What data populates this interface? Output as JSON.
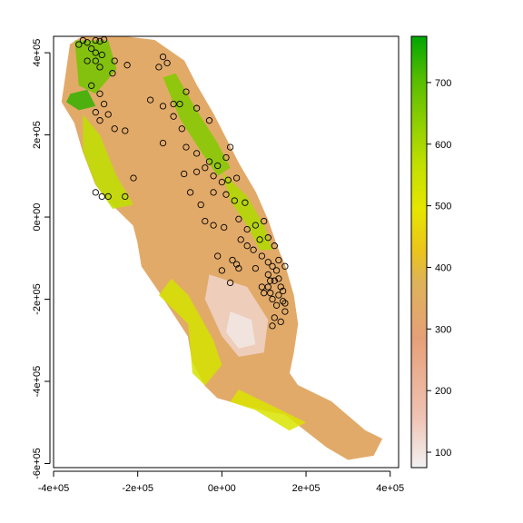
{
  "chart_data": {
    "type": "raster_map",
    "title": "",
    "xlabel": "",
    "ylabel": "",
    "xlim": [
      -400000,
      420000
    ],
    "ylim": [
      -610000,
      440000
    ],
    "x_ticks": [
      {
        "value": -400000,
        "label": "-4e+05"
      },
      {
        "value": -200000,
        "label": "-2e+05"
      },
      {
        "value": 0,
        "label": "0e+00"
      },
      {
        "value": 200000,
        "label": "2e+05"
      },
      {
        "value": 400000,
        "label": "4e+05"
      }
    ],
    "y_ticks": [
      {
        "value": -600000,
        "label": "-6e+05"
      },
      {
        "value": -400000,
        "label": "-4e+05"
      },
      {
        "value": -200000,
        "label": "-2e+05"
      },
      {
        "value": 0,
        "label": "0e+00"
      },
      {
        "value": 200000,
        "label": "2e+05"
      },
      {
        "value": 400000,
        "label": "4e+05"
      }
    ],
    "legend": {
      "placement": "right",
      "min": 75,
      "max": 775,
      "ticks": [
        100,
        200,
        300,
        400,
        500,
        600,
        700
      ],
      "colors": [
        "#f2f2f2",
        "#efc2b3",
        "#e6a078",
        "#ddb35a",
        "#ebc31c",
        "#e6e600",
        "#c2e000",
        "#8ecf00",
        "#57bd00",
        "#1fab00",
        "#00a600"
      ]
    },
    "region_outline": [
      [
        -360000,
        420000
      ],
      [
        -330000,
        440000
      ],
      [
        -240000,
        440000
      ],
      [
        -160000,
        430000
      ],
      [
        -90000,
        380000
      ],
      [
        -60000,
        320000
      ],
      [
        -20000,
        250000
      ],
      [
        10000,
        190000
      ],
      [
        40000,
        130000
      ],
      [
        80000,
        60000
      ],
      [
        110000,
        -10000
      ],
      [
        130000,
        -70000
      ],
      [
        150000,
        -120000
      ],
      [
        170000,
        -190000
      ],
      [
        180000,
        -260000
      ],
      [
        170000,
        -330000
      ],
      [
        160000,
        -380000
      ],
      [
        180000,
        -410000
      ],
      [
        260000,
        -450000
      ],
      [
        340000,
        -520000
      ],
      [
        380000,
        -540000
      ],
      [
        360000,
        -580000
      ],
      [
        300000,
        -590000
      ],
      [
        250000,
        -560000
      ],
      [
        200000,
        -520000
      ],
      [
        150000,
        -480000
      ],
      [
        100000,
        -470000
      ],
      [
        60000,
        -460000
      ],
      [
        -10000,
        -440000
      ],
      [
        -40000,
        -410000
      ],
      [
        -70000,
        -350000
      ],
      [
        -80000,
        -290000
      ],
      [
        -150000,
        -180000
      ],
      [
        -190000,
        -120000
      ],
      [
        -200000,
        -60000
      ],
      [
        -210000,
        -20000
      ],
      [
        -270000,
        40000
      ],
      [
        -300000,
        80000
      ],
      [
        -330000,
        160000
      ],
      [
        -350000,
        230000
      ],
      [
        -380000,
        280000
      ],
      [
        -370000,
        350000
      ],
      [
        -360000,
        420000
      ]
    ],
    "elevation_zones": [
      {
        "value": 680,
        "polygon": [
          [
            -360000,
            300000
          ],
          [
            -320000,
            310000
          ],
          [
            -300000,
            270000
          ],
          [
            -340000,
            260000
          ],
          [
            -370000,
            280000
          ]
        ]
      },
      {
        "value": 600,
        "polygon": [
          [
            -350000,
            430000
          ],
          [
            -270000,
            430000
          ],
          [
            -250000,
            360000
          ],
          [
            -300000,
            300000
          ],
          [
            -340000,
            320000
          ]
        ]
      },
      {
        "value": 580,
        "polygon": [
          [
            -140000,
            340000
          ],
          [
            -110000,
            350000
          ],
          [
            -60000,
            260000
          ],
          [
            -10000,
            180000
          ],
          [
            20000,
            120000
          ],
          [
            -10000,
            100000
          ],
          [
            -50000,
            160000
          ],
          [
            -100000,
            240000
          ]
        ]
      },
      {
        "value": 500,
        "polygon": [
          [
            -330000,
            250000
          ],
          [
            -290000,
            200000
          ],
          [
            -250000,
            100000
          ],
          [
            -210000,
            30000
          ],
          [
            -260000,
            20000
          ],
          [
            -300000,
            80000
          ],
          [
            -330000,
            160000
          ]
        ]
      },
      {
        "value": 520,
        "polygon": [
          [
            0,
            110000
          ],
          [
            60000,
            50000
          ],
          [
            100000,
            -20000
          ],
          [
            120000,
            -80000
          ],
          [
            90000,
            -80000
          ],
          [
            60000,
            -20000
          ],
          [
            20000,
            40000
          ]
        ]
      },
      {
        "value": 460,
        "polygon": [
          [
            -150000,
            -190000
          ],
          [
            -80000,
            -260000
          ],
          [
            -70000,
            -380000
          ],
          [
            -40000,
            -410000
          ],
          [
            0,
            -360000
          ],
          [
            -20000,
            -300000
          ],
          [
            -80000,
            -190000
          ],
          [
            -120000,
            -150000
          ]
        ]
      },
      {
        "value": 450,
        "polygon": [
          [
            40000,
            -420000
          ],
          [
            120000,
            -460000
          ],
          [
            200000,
            -500000
          ],
          [
            160000,
            -520000
          ],
          [
            80000,
            -470000
          ],
          [
            20000,
            -450000
          ]
        ]
      },
      {
        "value": 120,
        "polygon": [
          [
            -30000,
            -140000
          ],
          [
            60000,
            -170000
          ],
          [
            110000,
            -250000
          ],
          [
            100000,
            -330000
          ],
          [
            40000,
            -340000
          ],
          [
            0,
            -290000
          ],
          [
            -40000,
            -200000
          ]
        ]
      },
      {
        "value": 90,
        "polygon": [
          [
            20000,
            -230000
          ],
          [
            70000,
            -250000
          ],
          [
            80000,
            -310000
          ],
          [
            40000,
            -320000
          ],
          [
            10000,
            -280000
          ]
        ]
      }
    ],
    "points": [
      [
        -330000,
        430000
      ],
      [
        -320000,
        425000
      ],
      [
        -300000,
        430000
      ],
      [
        -290000,
        428000
      ],
      [
        -280000,
        432000
      ],
      [
        -340000,
        420000
      ],
      [
        -310000,
        410000
      ],
      [
        -300000,
        400000
      ],
      [
        -285000,
        395000
      ],
      [
        -320000,
        380000
      ],
      [
        -300000,
        380000
      ],
      [
        -290000,
        365000
      ],
      [
        -255000,
        380000
      ],
      [
        -225000,
        370000
      ],
      [
        -140000,
        390000
      ],
      [
        -130000,
        375000
      ],
      [
        -150000,
        365000
      ],
      [
        -310000,
        320000
      ],
      [
        -290000,
        300000
      ],
      [
        -260000,
        350000
      ],
      [
        -280000,
        275000
      ],
      [
        -300000,
        255000
      ],
      [
        -270000,
        250000
      ],
      [
        -290000,
        235000
      ],
      [
        -255000,
        215000
      ],
      [
        -230000,
        210000
      ],
      [
        -170000,
        285000
      ],
      [
        -140000,
        270000
      ],
      [
        -115000,
        275000
      ],
      [
        -100000,
        275000
      ],
      [
        -85000,
        305000
      ],
      [
        -60000,
        265000
      ],
      [
        -30000,
        235000
      ],
      [
        -115000,
        245000
      ],
      [
        -95000,
        215000
      ],
      [
        -85000,
        170000
      ],
      [
        -140000,
        180000
      ],
      [
        -60000,
        155000
      ],
      [
        -40000,
        120000
      ],
      [
        -30000,
        135000
      ],
      [
        -10000,
        125000
      ],
      [
        10000,
        145000
      ],
      [
        20000,
        170000
      ],
      [
        -20000,
        100000
      ],
      [
        0,
        85000
      ],
      [
        15000,
        90000
      ],
      [
        35000,
        95000
      ],
      [
        -60000,
        110000
      ],
      [
        -90000,
        105000
      ],
      [
        -75000,
        60000
      ],
      [
        -20000,
        60000
      ],
      [
        10000,
        55000
      ],
      [
        30000,
        40000
      ],
      [
        55000,
        35000
      ],
      [
        -50000,
        30000
      ],
      [
        -40000,
        -10000
      ],
      [
        -20000,
        -20000
      ],
      [
        5000,
        -25000
      ],
      [
        -300000,
        60000
      ],
      [
        -285000,
        50000
      ],
      [
        -270000,
        50000
      ],
      [
        -230000,
        50000
      ],
      [
        -210000,
        95000
      ],
      [
        40000,
        -5000
      ],
      [
        60000,
        -30000
      ],
      [
        80000,
        -20000
      ],
      [
        100000,
        -10000
      ],
      [
        90000,
        -55000
      ],
      [
        45000,
        -55000
      ],
      [
        60000,
        -70000
      ],
      [
        75000,
        -80000
      ],
      [
        110000,
        -50000
      ],
      [
        125000,
        -70000
      ],
      [
        35000,
        -115000
      ],
      [
        40000,
        -125000
      ],
      [
        80000,
        -125000
      ],
      [
        95000,
        -95000
      ],
      [
        110000,
        -110000
      ],
      [
        120000,
        -120000
      ],
      [
        130000,
        -130000
      ],
      [
        110000,
        -140000
      ],
      [
        95000,
        -170000
      ],
      [
        110000,
        -170000
      ],
      [
        115000,
        -155000
      ],
      [
        125000,
        -155000
      ],
      [
        135000,
        -150000
      ],
      [
        140000,
        -170000
      ],
      [
        145000,
        -180000
      ],
      [
        100000,
        -185000
      ],
      [
        115000,
        -185000
      ],
      [
        120000,
        -200000
      ],
      [
        135000,
        -190000
      ],
      [
        145000,
        -205000
      ],
      [
        150000,
        -210000
      ],
      [
        130000,
        -215000
      ],
      [
        150000,
        -230000
      ],
      [
        125000,
        -245000
      ],
      [
        120000,
        -265000
      ],
      [
        140000,
        -255000
      ],
      [
        -10000,
        -95000
      ],
      [
        25000,
        -105000
      ],
      [
        20000,
        -160000
      ],
      [
        0,
        -130000
      ],
      [
        135000,
        -105000
      ],
      [
        150000,
        -120000
      ]
    ]
  }
}
